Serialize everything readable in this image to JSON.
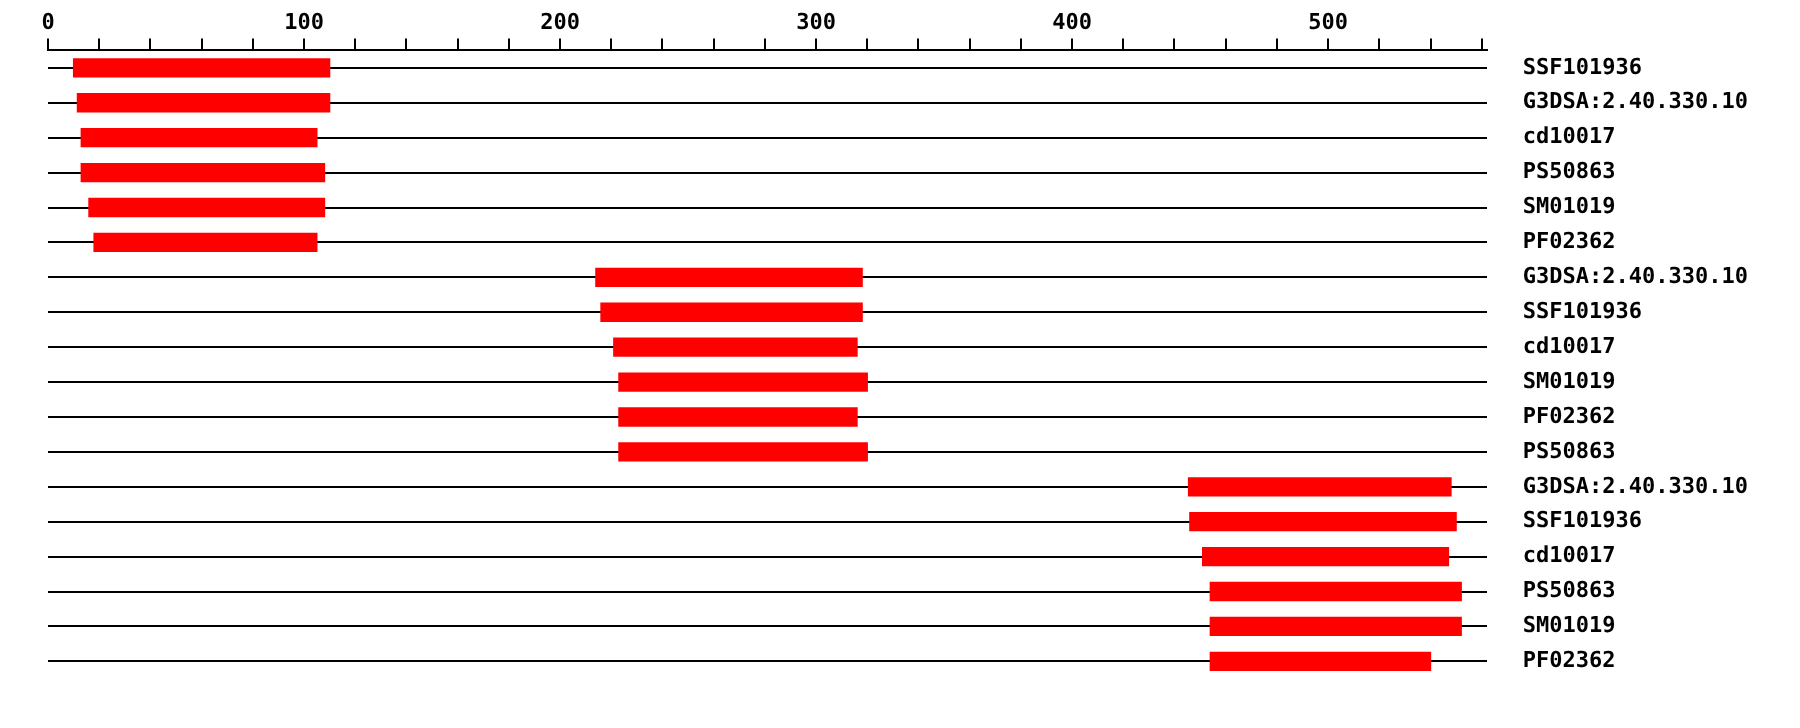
{
  "chart_data": {
    "type": "bar",
    "orientation": "horizontal",
    "categories": [
      "SSF101936",
      "G3DSA:2.40.330.10",
      "cd10017",
      "PS50863",
      "SM01019",
      "PF02362",
      "G3DSA:2.40.330.10",
      "SSF101936",
      "cd10017",
      "SM01019",
      "PF02362",
      "PS50863",
      "G3DSA:2.40.330.10",
      "SSF101936",
      "cd10017",
      "PS50863",
      "SM01019",
      "PF02362"
    ],
    "base": [
      10,
      11.5,
      13,
      13,
      16,
      18,
      214,
      216,
      221,
      223,
      223,
      223,
      445.5,
      446,
      451,
      454,
      454,
      454
    ],
    "values": [
      100,
      98.5,
      92,
      95,
      92,
      87,
      104,
      102,
      95,
      97,
      93,
      97,
      102.5,
      104,
      96,
      98,
      98,
      86
    ],
    "color": "#ff0000",
    "xlim": [
      0,
      562
    ],
    "xticks": [
      0,
      {
        "value": 20,
        "label": null
      },
      {
        "value": 40,
        "label": null
      },
      {
        "value": 60,
        "label": null
      },
      {
        "value": 80,
        "label": null
      },
      100,
      {
        "value": 120,
        "label": null
      },
      {
        "value": 140,
        "label": null
      },
      {
        "value": 160,
        "label": null
      },
      {
        "value": 180,
        "label": null
      },
      200,
      {
        "value": 220,
        "label": null
      },
      {
        "value": 240,
        "label": null
      },
      {
        "value": 260,
        "label": null
      },
      {
        "value": 280,
        "label": null
      },
      300,
      {
        "value": 320,
        "label": null
      },
      {
        "value": 340,
        "label": null
      },
      {
        "value": 360,
        "label": null
      },
      {
        "value": 380,
        "label": null
      },
      400,
      {
        "value": 420,
        "label": null
      },
      {
        "value": 440,
        "label": null
      },
      {
        "value": 460,
        "label": null
      },
      {
        "value": 480,
        "label": null
      },
      500,
      {
        "value": 520,
        "label": null
      },
      {
        "value": 540,
        "label": null
      },
      {
        "value": 560,
        "label": null
      }
    ],
    "grid": "y",
    "legend": false
  }
}
